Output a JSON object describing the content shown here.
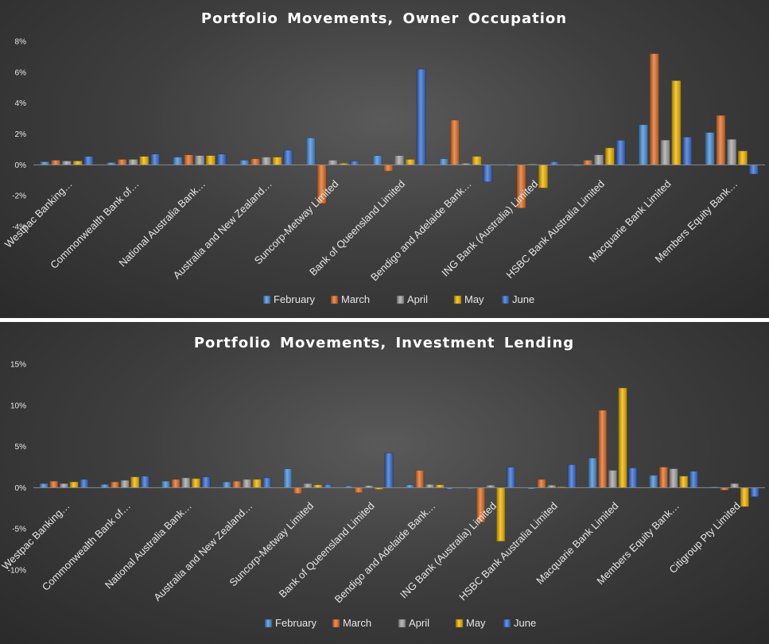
{
  "chart_data": [
    {
      "type": "bar",
      "title": "Portfolio Movements, Owner Occupation",
      "categories": [
        "Westpac Banking…",
        "Commonwealth Bank of…",
        "National Australia Bank…",
        "Australia and New Zealand…",
        "Suncorp-Metway Limited",
        "Bank of Queensland Limited",
        "Bendigo and Adelaide Bank…",
        "ING Bank (Australia) Limited",
        "HSBC Bank Australia Limited",
        "Macquarie Bank Limited",
        "Members Equity Bank…"
      ],
      "series": [
        {
          "name": "February",
          "values": [
            0.2,
            0.15,
            0.5,
            0.3,
            1.75,
            0.6,
            0.4,
            0.0,
            -0.05,
            2.6,
            2.1
          ]
        },
        {
          "name": "March",
          "values": [
            0.3,
            0.35,
            0.65,
            0.4,
            -2.5,
            -0.4,
            2.9,
            -2.8,
            0.3,
            7.2,
            3.2
          ]
        },
        {
          "name": "April",
          "values": [
            0.25,
            0.35,
            0.6,
            0.5,
            0.3,
            0.6,
            0.1,
            0.05,
            0.65,
            1.6,
            1.65
          ]
        },
        {
          "name": "May",
          "values": [
            0.25,
            0.55,
            0.6,
            0.5,
            0.1,
            0.35,
            0.55,
            -1.5,
            1.1,
            5.45,
            0.9
          ]
        },
        {
          "name": "June",
          "values": [
            0.55,
            0.7,
            0.7,
            0.95,
            0.25,
            6.2,
            -1.1,
            0.2,
            1.6,
            1.8,
            -0.6
          ]
        }
      ],
      "ylim": [
        -4,
        8
      ],
      "yticks": [
        -4,
        -2,
        0,
        2,
        4,
        6,
        8
      ],
      "ytick_labels": [
        "-4%",
        "-2%",
        "0%",
        "2%",
        "4%",
        "6%",
        "8%"
      ],
      "legend_position": "bottom",
      "grid": false,
      "colors": [
        "#4a8fd4",
        "#e0702a",
        "#a6a6a6",
        "#f2b800",
        "#3a6fd0"
      ]
    },
    {
      "type": "bar",
      "title": "Portfolio Movements, Investment Lending",
      "categories": [
        "Westpac Banking…",
        "Commonwealth Bank of…",
        "National Australia Bank…",
        "Australia and New Zealand…",
        "Suncorp-Metway Limited",
        "Bank of Queensland Limited",
        "Bendigo and Adelaide Bank…",
        "ING Bank (Australia) Limited",
        "HSBC Bank Australia Limited",
        "Macquarie Bank Limited",
        "Members Equity Bank…",
        "Citigroup Pty Limited"
      ],
      "series": [
        {
          "name": "February",
          "values": [
            0.5,
            0.4,
            0.8,
            0.7,
            2.3,
            0.2,
            0.35,
            -0.1,
            -0.15,
            3.6,
            1.5,
            0.1
          ]
        },
        {
          "name": "March",
          "values": [
            0.8,
            0.7,
            1.0,
            0.8,
            -0.7,
            -0.6,
            2.1,
            -4.2,
            1.0,
            9.4,
            2.5,
            -0.3
          ]
        },
        {
          "name": "April",
          "values": [
            0.5,
            0.9,
            1.2,
            1.0,
            0.5,
            0.25,
            0.4,
            0.3,
            0.3,
            2.1,
            2.3,
            0.5
          ]
        },
        {
          "name": "May",
          "values": [
            0.7,
            1.3,
            1.1,
            1.0,
            0.35,
            -0.2,
            0.35,
            -6.5,
            0.1,
            12.1,
            1.4,
            -2.3
          ]
        },
        {
          "name": "June",
          "values": [
            1.0,
            1.4,
            1.3,
            1.2,
            0.4,
            4.2,
            -0.2,
            2.5,
            2.8,
            2.4,
            2.0,
            -1.1
          ]
        }
      ],
      "ylim": [
        -10,
        15
      ],
      "yticks": [
        -10,
        -5,
        0,
        5,
        10,
        15
      ],
      "ytick_labels": [
        "-10%",
        "-5%",
        "0%",
        "5%",
        "10%",
        "15%"
      ],
      "legend_position": "bottom",
      "grid": false,
      "colors": [
        "#4a8fd4",
        "#e0702a",
        "#a6a6a6",
        "#f2b800",
        "#3a6fd0"
      ]
    }
  ]
}
